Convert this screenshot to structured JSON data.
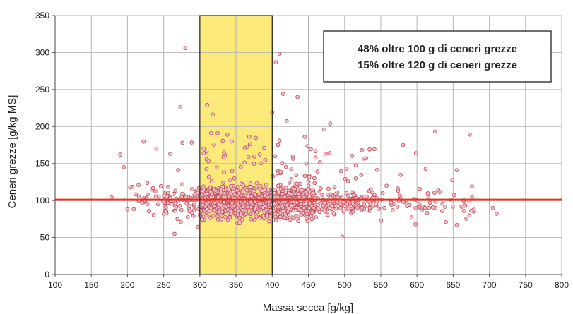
{
  "chart_data": {
    "type": "scatter",
    "xlabel": "Massa secca [g/kg]",
    "ylabel": "Ceneri grezze [g/kg MS]",
    "xlim": [
      100,
      800
    ],
    "ylim": [
      0,
      350
    ],
    "xticks": [
      "100",
      "150",
      "200",
      "250",
      "300",
      "350",
      "400",
      "450",
      "500",
      "550",
      "600",
      "650",
      "700",
      "750",
      "800"
    ],
    "yticks": [
      "0",
      "50",
      "100",
      "150",
      "200",
      "250",
      "300",
      "350"
    ],
    "grid": true,
    "highlight_band": {
      "x": [
        300,
        400
      ],
      "color": "#fbe97a"
    },
    "reference_line": {
      "y": 101,
      "color": "#e8301e"
    },
    "annotation": [
      "48% oltre 100 g di ceneri grezze",
      "15% oltre 120 g di ceneri grezze"
    ],
    "marker_color": "#c0505a",
    "notable_points": [
      {
        "x": 280,
        "y": 306
      },
      {
        "x": 410,
        "y": 298
      },
      {
        "x": 405,
        "y": 287
      },
      {
        "x": 415,
        "y": 244
      },
      {
        "x": 435,
        "y": 240
      },
      {
        "x": 310,
        "y": 229
      },
      {
        "x": 273,
        "y": 226
      },
      {
        "x": 400,
        "y": 219
      },
      {
        "x": 318,
        "y": 216
      },
      {
        "x": 420,
        "y": 207
      },
      {
        "x": 480,
        "y": 204
      },
      {
        "x": 472,
        "y": 196
      },
      {
        "x": 625,
        "y": 193
      },
      {
        "x": 338,
        "y": 189
      },
      {
        "x": 445,
        "y": 186
      },
      {
        "x": 276,
        "y": 178
      },
      {
        "x": 410,
        "y": 181
      },
      {
        "x": 240,
        "y": 170
      },
      {
        "x": 190,
        "y": 162
      },
      {
        "x": 530,
        "y": 157
      },
      {
        "x": 460,
        "y": 158
      },
      {
        "x": 195,
        "y": 145
      },
      {
        "x": 612,
        "y": 143
      },
      {
        "x": 655,
        "y": 141
      },
      {
        "x": 558,
        "y": 120
      },
      {
        "x": 676,
        "y": 119
      },
      {
        "x": 574,
        "y": 113
      },
      {
        "x": 178,
        "y": 104
      },
      {
        "x": 200,
        "y": 88
      },
      {
        "x": 705,
        "y": 90
      },
      {
        "x": 710,
        "y": 82
      },
      {
        "x": 655,
        "y": 67
      },
      {
        "x": 497,
        "y": 51
      },
      {
        "x": 265,
        "y": 55
      },
      {
        "x": 640,
        "y": 71
      },
      {
        "x": 598,
        "y": 68
      }
    ]
  }
}
